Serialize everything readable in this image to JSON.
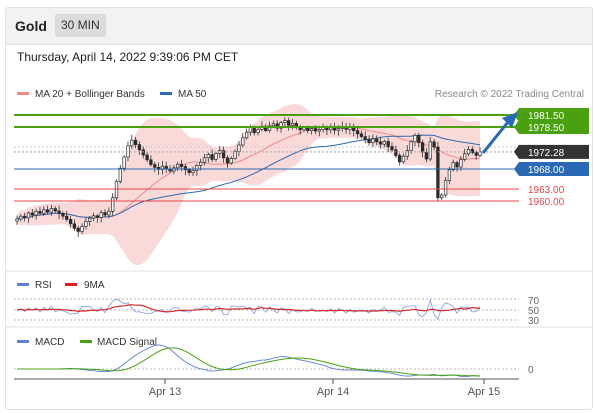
{
  "header": {
    "title": "Gold",
    "timeframe": "30 MIN"
  },
  "datetime": "Thursday, April 14, 2022 9:39:06 PM CET",
  "legend": {
    "ma20": "MA 20 + Bollinger Bands",
    "ma50": "MA 50",
    "credit": "Research © 2022 Trading Central"
  },
  "rsi_legend": {
    "rsi": "RSI",
    "ma9": "9MA"
  },
  "macd_legend": {
    "macd": "MACD",
    "signal": "MACD Signal"
  },
  "colors": {
    "green": "#4aa10f",
    "blue": "#2a6ab4",
    "red": "#e8464a",
    "band": "#f9d2d2",
    "up": "#3a3a3a"
  },
  "chart_data": {
    "type": "candlestick",
    "x_ticks": [
      "Apr 13",
      "Apr 14",
      "Apr 15"
    ],
    "price_levels": [
      {
        "label": "1981.50",
        "value": 1981.5,
        "kind": "resistance",
        "color": "#4aa10f"
      },
      {
        "label": "1978.50",
        "value": 1978.5,
        "kind": "resistance",
        "color": "#4aa10f"
      },
      {
        "label": "1972.28",
        "value": 1972.28,
        "kind": "last-price",
        "color": "#333333"
      },
      {
        "label": "1968.00",
        "value": 1968.0,
        "kind": "pivot",
        "color": "#2a6ab4"
      },
      {
        "label": "1963.00",
        "value": 1963.0,
        "kind": "support",
        "color": "#e8464a"
      },
      {
        "label": "1960.00",
        "value": 1960.0,
        "kind": "support",
        "color": "#e8464a"
      }
    ],
    "close": [
      1955.5,
      1956.2,
      1955.8,
      1957.0,
      1956.5,
      1957.4,
      1956.9,
      1957.8,
      1957.2,
      1958.1,
      1957.5,
      1956.9,
      1956.2,
      1955.4,
      1954.3,
      1953.2,
      1952.4,
      1953.6,
      1954.9,
      1955.7,
      1956.3,
      1955.9,
      1957.1,
      1956.5,
      1957.4,
      1960.8,
      1964.9,
      1968.2,
      1971.0,
      1973.8,
      1975.2,
      1974.1,
      1972.8,
      1971.5,
      1970.3,
      1969.1,
      1968.4,
      1967.9,
      1968.7,
      1968.0,
      1967.5,
      1968.3,
      1969.2,
      1968.6,
      1967.8,
      1967.1,
      1967.6,
      1968.9,
      1969.7,
      1970.8,
      1971.6,
      1970.4,
      1971.9,
      1972.6,
      1970.8,
      1969.5,
      1970.6,
      1972.4,
      1974.0,
      1975.8,
      1977.2,
      1978.4,
      1977.1,
      1977.9,
      1978.7,
      1977.6,
      1978.8,
      1979.3,
      1978.2,
      1979.6,
      1980.1,
      1978.9,
      1979.4,
      1978.6,
      1977.8,
      1978.3,
      1977.6,
      1978.1,
      1977.5,
      1977.9,
      1978.4,
      1977.8,
      1978.3,
      1977.7,
      1978.1,
      1978.6,
      1977.9,
      1978.4,
      1977.6,
      1976.8,
      1976.1,
      1975.4,
      1974.6,
      1975.5,
      1974.8,
      1974.2,
      1974.9,
      1973.6,
      1972.8,
      1971.4,
      1969.8,
      1971.2,
      1972.6,
      1974.8,
      1976.4,
      1974.6,
      1972.2,
      1970.5,
      1974.8,
      1973.5,
      1960.8,
      1961.5,
      1965.1,
      1967.8,
      1969.6,
      1968.5,
      1970.4,
      1971.8,
      1972.9,
      1972.1,
      1971.4,
      1972.28
    ]
  }
}
